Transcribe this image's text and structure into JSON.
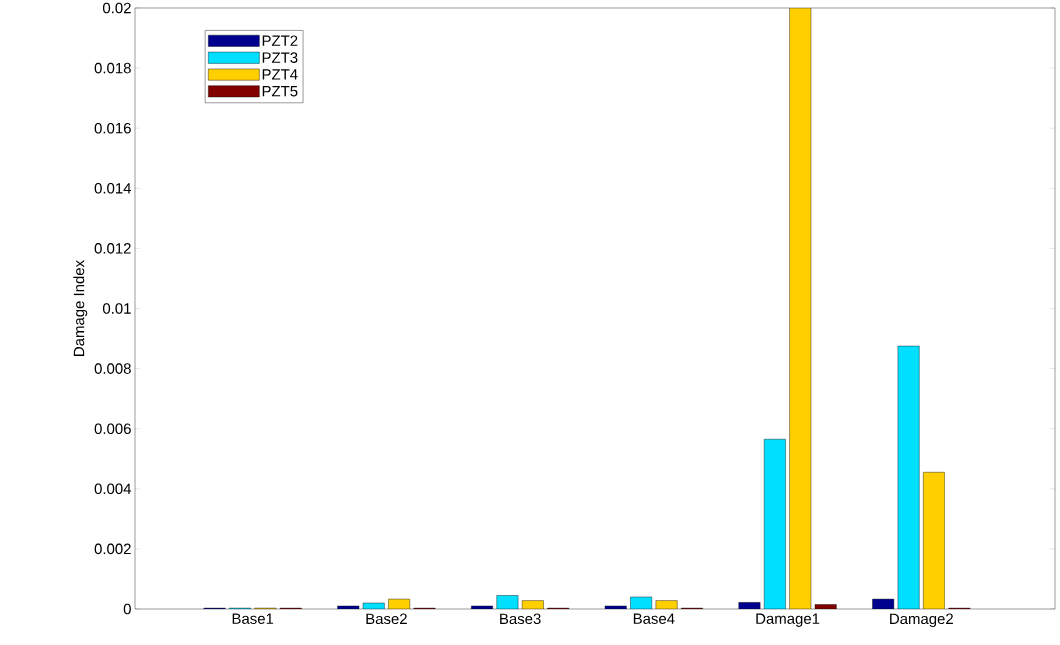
{
  "chart_data": {
    "type": "bar",
    "ylabel": "Damage Index",
    "categories": [
      "Base1",
      "Base2",
      "Base3",
      "Base4",
      "Damage1",
      "Damage2"
    ],
    "series": [
      {
        "name": "PZT2",
        "color": "#00008f",
        "values": [
          3e-05,
          0.0001,
          0.0001,
          0.0001,
          0.00022,
          0.00033
        ]
      },
      {
        "name": "PZT3",
        "color": "#00dfff",
        "values": [
          3e-05,
          0.0002,
          0.00045,
          0.0004,
          0.00565,
          0.00875
        ]
      },
      {
        "name": "PZT4",
        "color": "#ffcf00",
        "values": [
          3e-05,
          0.00033,
          0.00028,
          0.00028,
          0.02,
          0.00455
        ]
      },
      {
        "name": "PZT5",
        "color": "#800000",
        "values": [
          3e-05,
          3e-05,
          3e-05,
          3e-05,
          0.00015,
          3e-05
        ]
      }
    ],
    "ylim": [
      0,
      0.02
    ],
    "yticks": [
      0,
      0.002,
      0.004,
      0.006,
      0.008,
      0.01,
      0.012,
      0.014,
      0.016,
      0.018,
      0.02
    ],
    "legend": "top left",
    "grid": false
  }
}
